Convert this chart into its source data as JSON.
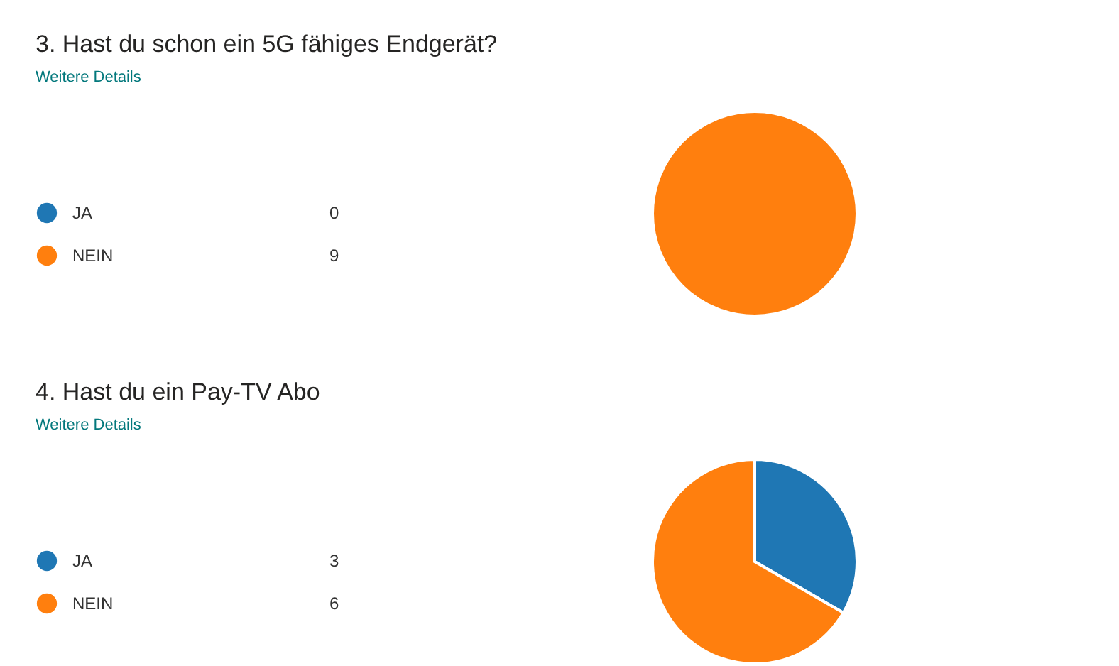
{
  "chart_data": [
    {
      "type": "pie",
      "title": "3.  Hast du schon ein 5G fähiges Endgerät?",
      "annotations": [
        "Weitere Details"
      ],
      "categories": [
        "JA",
        "NEIN"
      ],
      "values": [
        0,
        9
      ],
      "value_labels": [
        "0",
        "9"
      ],
      "colors": [
        "#1f77b4",
        "#ff7f0e"
      ],
      "legend": "left"
    },
    {
      "type": "pie",
      "title": "4.  Hast du ein Pay-TV Abo",
      "annotations": [
        "Weitere Details"
      ],
      "categories": [
        "JA",
        "NEIN"
      ],
      "values": [
        3,
        6
      ],
      "value_labels": [
        "3",
        "6"
      ],
      "colors": [
        "#1f77b4",
        "#ff7f0e"
      ],
      "legend": "left"
    }
  ]
}
